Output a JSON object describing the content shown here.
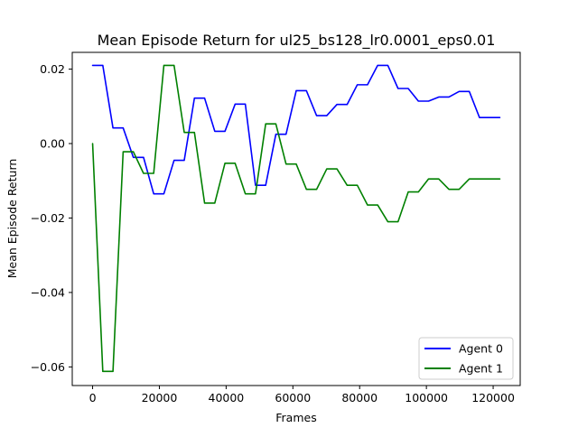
{
  "chart_data": {
    "type": "line",
    "title": "Mean Episode Return for ul25_bs128_lr0.0001_eps0.01",
    "xlabel": "Frames",
    "ylabel": "Mean Episode Return",
    "xlim": [
      -6100,
      128100
    ],
    "ylim": [
      -0.065,
      0.0245
    ],
    "xticks": [
      0,
      20000,
      40000,
      60000,
      80000,
      100000,
      120000
    ],
    "xtick_labels": [
      "0",
      "20000",
      "40000",
      "60000",
      "80000",
      "100000",
      "120000"
    ],
    "yticks": [
      0.02,
      0.0,
      -0.02,
      -0.04,
      -0.06
    ],
    "ytick_labels": [
      "0.02",
      "0.00",
      "−0.02",
      "−0.04",
      "−0.06"
    ],
    "grid": false,
    "legend_position": "lower-right",
    "series": [
      {
        "name": "Agent 0",
        "color": "#0000ff",
        "x": [
          0,
          3050,
          6100,
          9150,
          12200,
          15250,
          18300,
          21350,
          24400,
          27450,
          30500,
          33550,
          36600,
          39650,
          42700,
          45750,
          48800,
          51850,
          54900,
          57950,
          61000,
          64050,
          67100,
          70150,
          73200,
          76250,
          79300,
          82350,
          85400,
          88450,
          91500,
          94550,
          97600,
          100650,
          103700,
          106750,
          109800,
          112850,
          115900,
          118950,
          122000
        ],
        "values": [
          0.021,
          0.021,
          0.0042,
          0.0042,
          -0.0037,
          -0.0037,
          -0.0135,
          -0.0135,
          -0.0045,
          -0.0045,
          0.0122,
          0.0122,
          0.0033,
          0.0033,
          0.0106,
          0.0106,
          -0.0112,
          -0.0112,
          0.0025,
          0.0025,
          0.0142,
          0.0142,
          0.0075,
          0.0075,
          0.0105,
          0.0105,
          0.0158,
          0.0158,
          0.021,
          0.021,
          0.0148,
          0.0148,
          0.0114,
          0.0114,
          0.0125,
          0.0125,
          0.014,
          0.014,
          0.007,
          0.007,
          0.007
        ]
      },
      {
        "name": "Agent 1",
        "color": "#008000",
        "x": [
          0,
          3050,
          6100,
          9150,
          12200,
          15250,
          18300,
          21350,
          24400,
          27450,
          30500,
          33550,
          36600,
          39650,
          42700,
          45750,
          48800,
          51850,
          54900,
          57950,
          61000,
          64050,
          67100,
          70150,
          73200,
          76250,
          79300,
          82350,
          85400,
          88450,
          91500,
          94550,
          97600,
          100650,
          103700,
          106750,
          109800,
          112850,
          115900,
          118950,
          122000
        ],
        "values": [
          0.0,
          -0.0612,
          -0.0612,
          -0.0022,
          -0.0022,
          -0.008,
          -0.008,
          0.021,
          0.021,
          0.003,
          0.003,
          -0.016,
          -0.016,
          -0.0053,
          -0.0053,
          -0.0135,
          -0.0135,
          0.0053,
          0.0053,
          -0.0055,
          -0.0055,
          -0.0123,
          -0.0123,
          -0.0068,
          -0.0068,
          -0.0112,
          -0.0112,
          -0.0165,
          -0.0165,
          -0.021,
          -0.021,
          -0.013,
          -0.013,
          -0.0095,
          -0.0095,
          -0.0123,
          -0.0123,
          -0.0095,
          -0.0095,
          -0.0095,
          -0.0095
        ]
      }
    ]
  }
}
